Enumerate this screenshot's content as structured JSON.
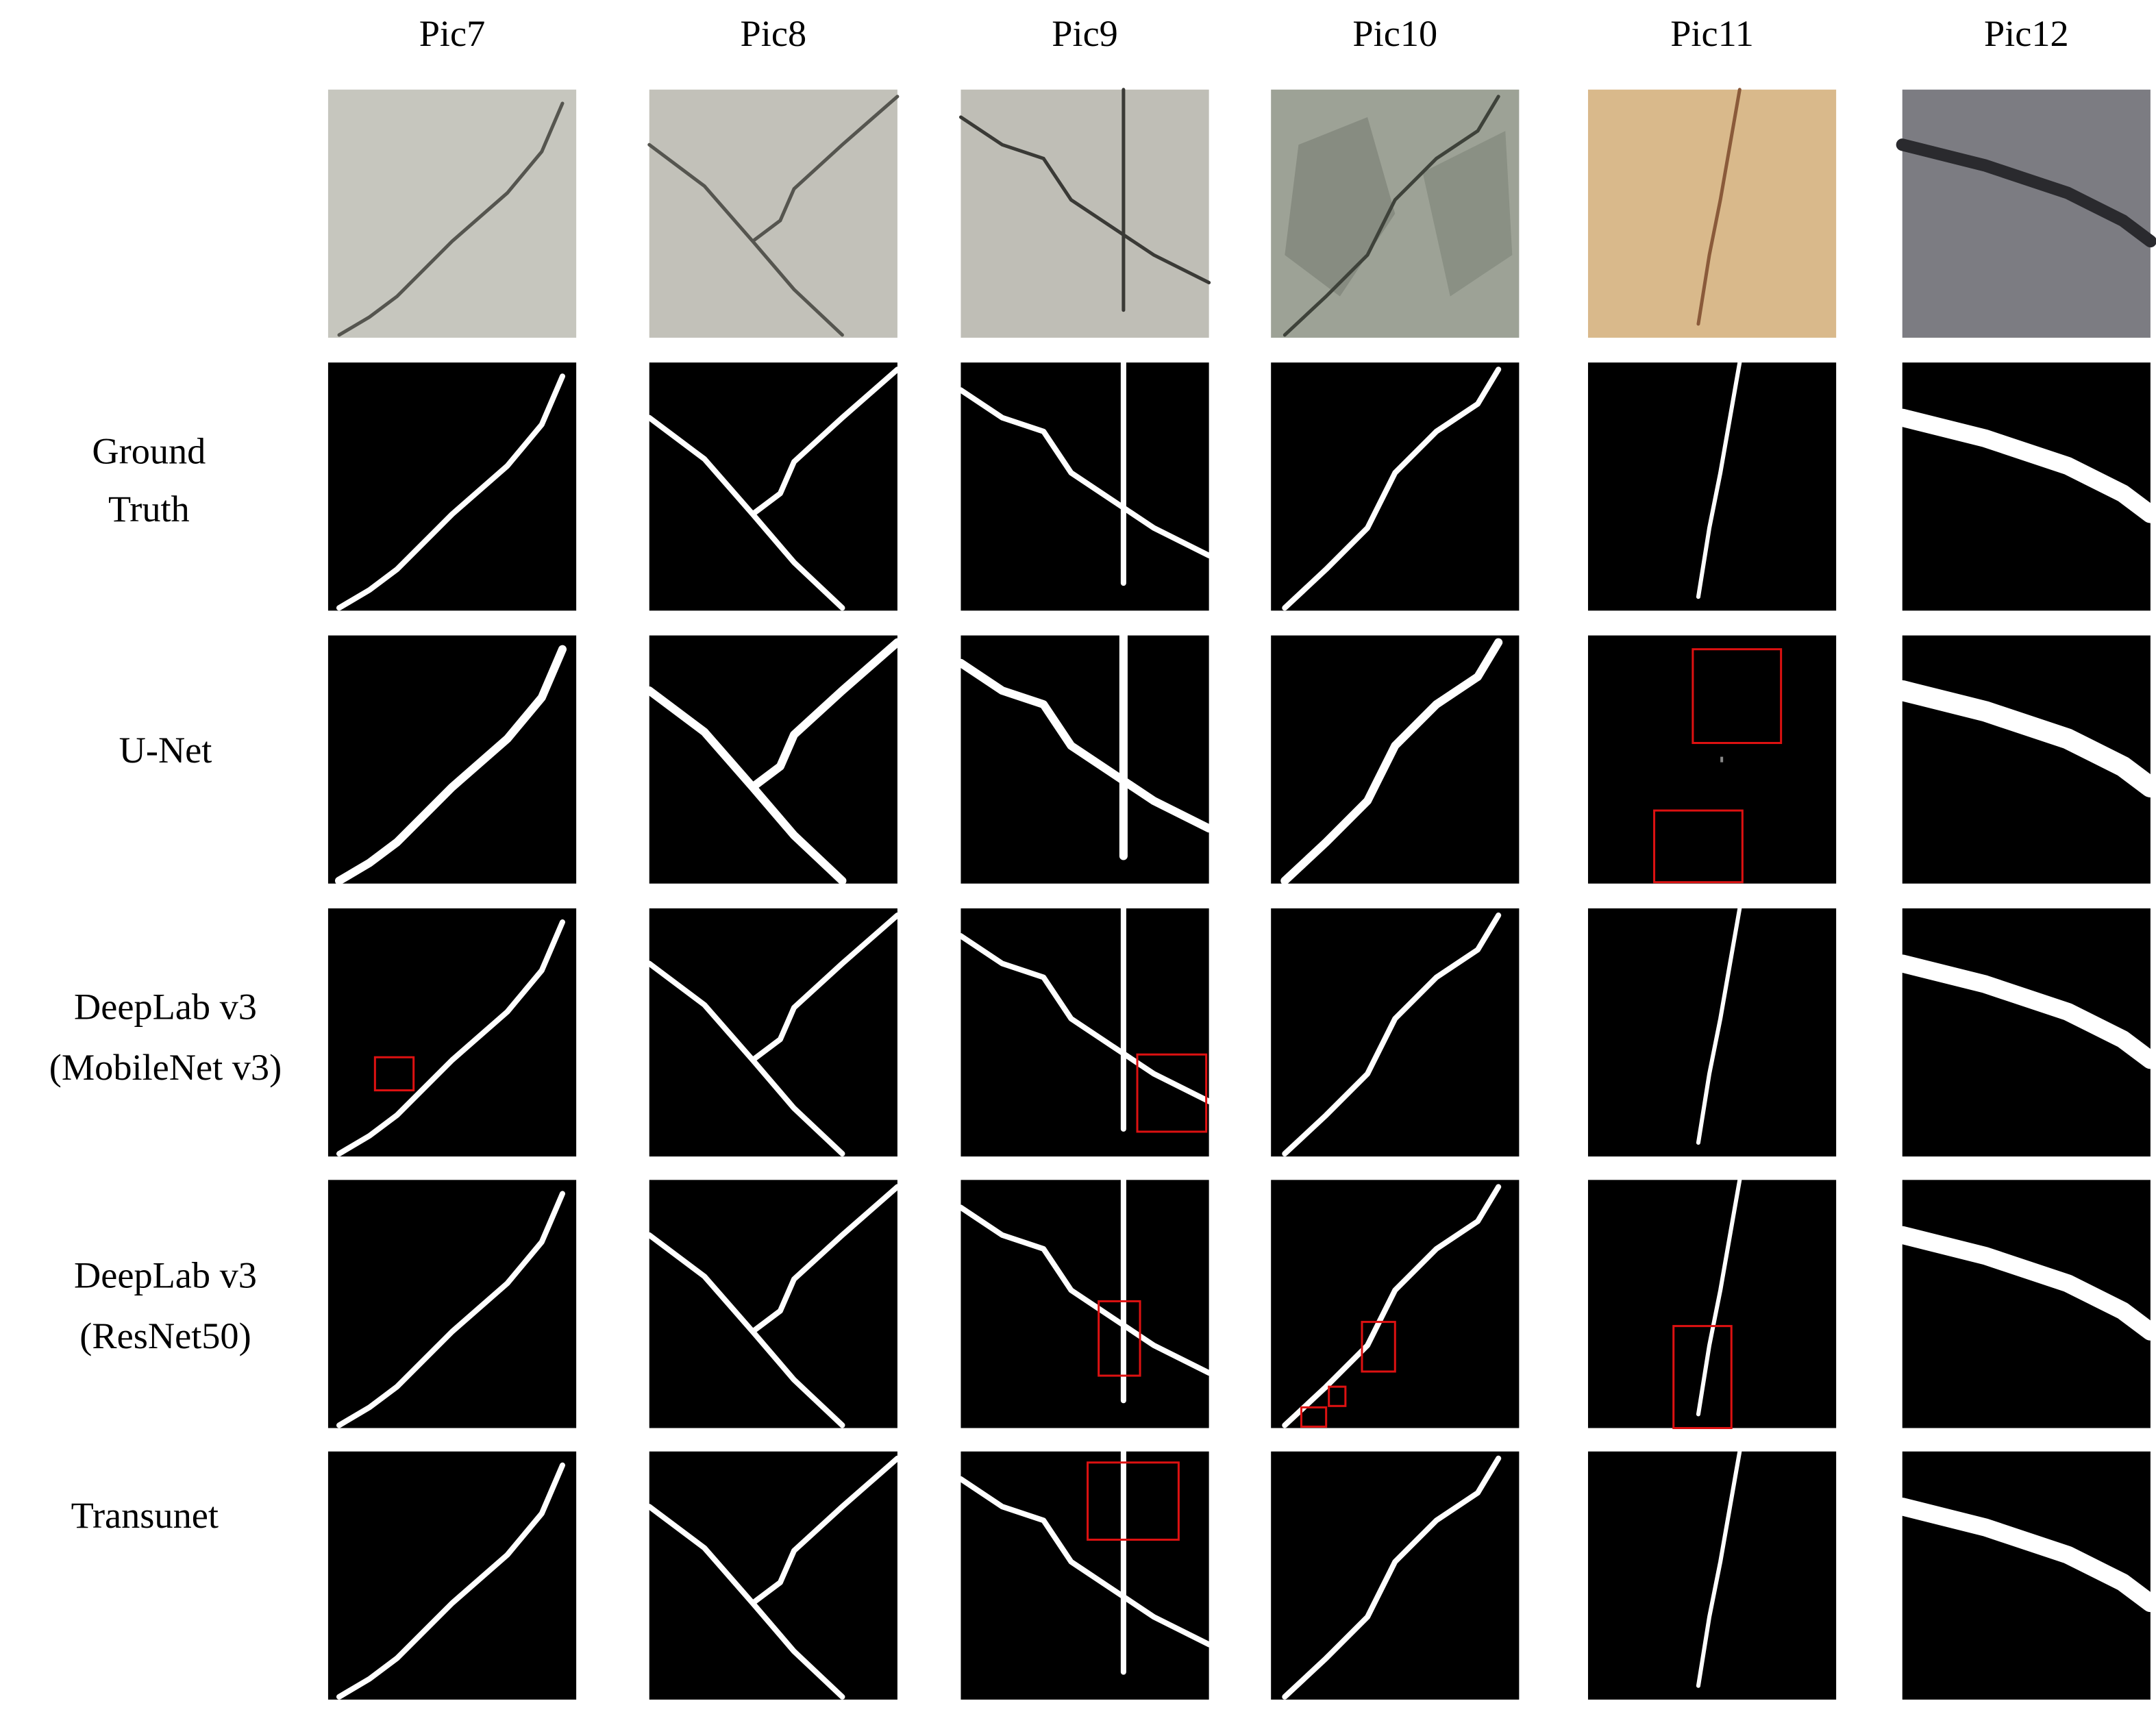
{
  "columns": [
    "Pic7",
    "Pic8",
    "Pic9",
    "Pic10",
    "Pic11",
    "Pic12"
  ],
  "rows": [
    [
      "Ground",
      "Truth"
    ],
    [
      "U-Net"
    ],
    [
      "DeepLab v3",
      "(MobileNet v3)"
    ],
    [
      "DeepLab v3",
      "(ResNet50)"
    ],
    [
      "Transunet"
    ]
  ]
}
